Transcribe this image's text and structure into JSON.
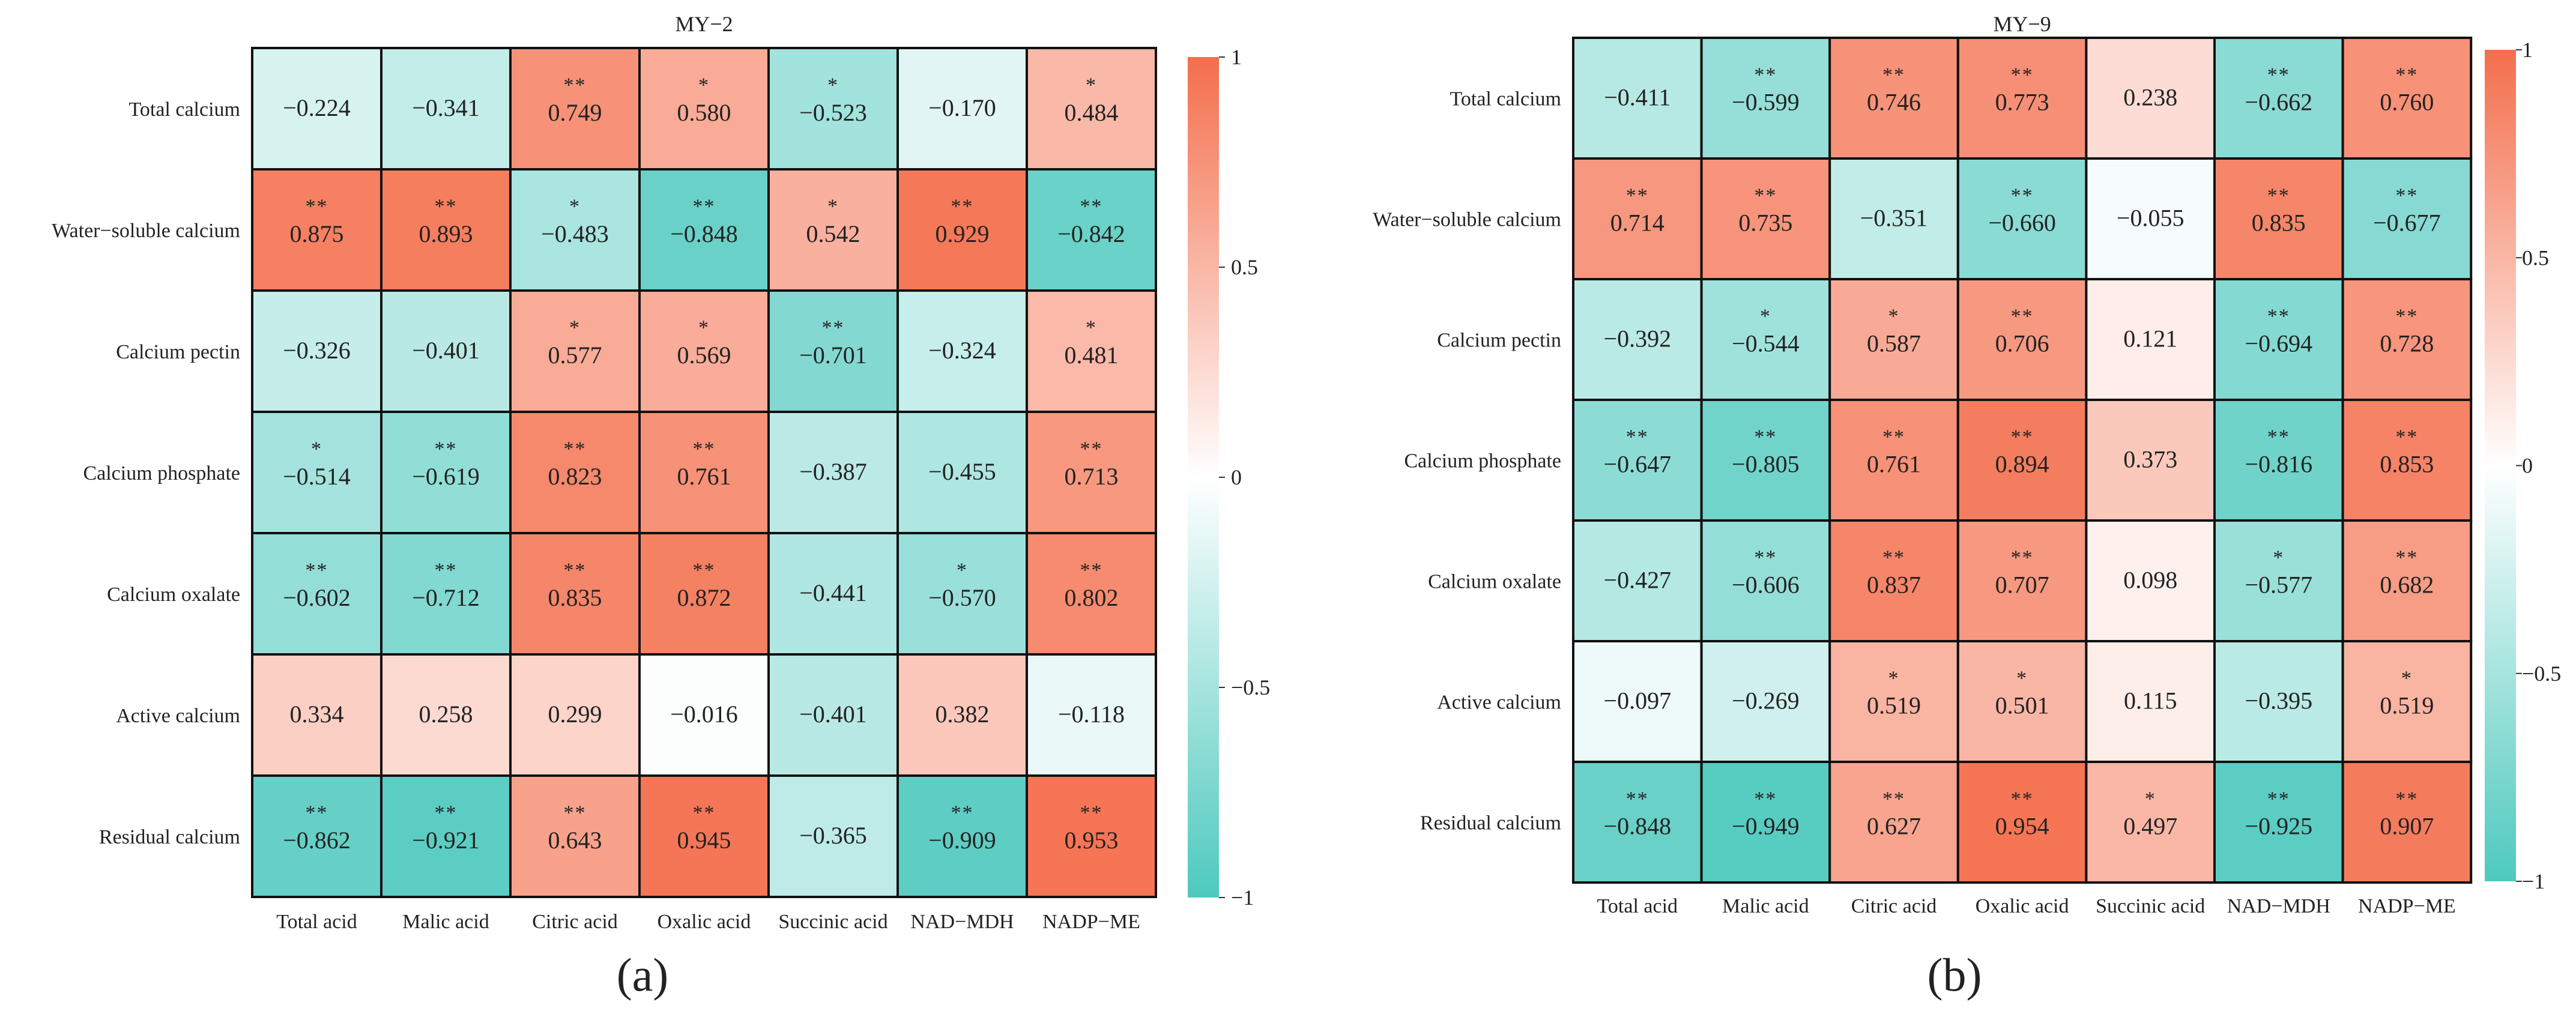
{
  "chart_data": [
    {
      "type": "heatmap",
      "title": "MY−2",
      "panel_label": "(a)",
      "rows": [
        "Total calcium",
        "Water−soluble calcium",
        "Calcium pectin",
        "Calcium phosphate",
        "Calcium oxalate",
        "Active calcium",
        "Residual calcium"
      ],
      "columns": [
        "Total acid",
        "Malic acid",
        "Citric acid",
        "Oxalic acid",
        "Succinic acid",
        "NAD−MDH",
        "NADP−ME"
      ],
      "values": [
        [
          -0.224,
          -0.341,
          0.749,
          0.58,
          -0.523,
          -0.17,
          0.484
        ],
        [
          0.875,
          0.893,
          -0.483,
          -0.848,
          0.542,
          0.929,
          -0.842
        ],
        [
          -0.326,
          -0.401,
          0.577,
          0.569,
          -0.701,
          -0.324,
          0.481
        ],
        [
          -0.514,
          -0.619,
          0.823,
          0.761,
          -0.387,
          -0.455,
          0.713
        ],
        [
          -0.602,
          -0.712,
          0.835,
          0.872,
          -0.441,
          -0.57,
          0.802
        ],
        [
          0.334,
          0.258,
          0.299,
          -0.016,
          -0.401,
          0.382,
          -0.118
        ],
        [
          -0.862,
          -0.921,
          0.643,
          0.945,
          -0.365,
          -0.909,
          0.953
        ]
      ],
      "value_labels": [
        [
          "−0.224",
          "−0.341",
          "0.749",
          "0.580",
          "−0.523",
          "−0.170",
          "0.484"
        ],
        [
          "0.875",
          "0.893",
          "−0.483",
          "−0.848",
          "0.542",
          "0.929",
          "−0.842"
        ],
        [
          "−0.326",
          "−0.401",
          "0.577",
          "0.569",
          "−0.701",
          "−0.324",
          "0.481"
        ],
        [
          "−0.514",
          "−0.619",
          "0.823",
          "0.761",
          "−0.387",
          "−0.455",
          "0.713"
        ],
        [
          "−0.602",
          "−0.712",
          "0.835",
          "0.872",
          "−0.441",
          "−0.570",
          "0.802"
        ],
        [
          "0.334",
          "0.258",
          "0.299",
          "−0.016",
          "−0.401",
          "0.382",
          "−0.118"
        ],
        [
          "−0.862",
          "−0.921",
          "0.643",
          "0.945",
          "−0.365",
          "−0.909",
          "0.953"
        ]
      ],
      "significance": [
        [
          "",
          "",
          "**",
          "*",
          "*",
          "",
          "*"
        ],
        [
          "**",
          "**",
          "*",
          "**",
          "*",
          "**",
          "**"
        ],
        [
          "",
          "",
          "*",
          "*",
          "**",
          "",
          "*"
        ],
        [
          "*",
          "**",
          "**",
          "**",
          "",
          "",
          "**"
        ],
        [
          "**",
          "**",
          "**",
          "**",
          "",
          "*",
          "**"
        ],
        [
          "",
          "",
          "",
          "",
          "",
          "",
          ""
        ],
        [
          "**",
          "**",
          "**",
          "**",
          "",
          "**",
          "**"
        ]
      ],
      "colorbar": {
        "range": [
          -1,
          1
        ],
        "ticks": [
          "1",
          "0.5",
          "0",
          "−0.5",
          "−1"
        ]
      }
    },
    {
      "type": "heatmap",
      "title": "MY−9",
      "panel_label": "(b)",
      "rows": [
        "Total calcium",
        "Water−soluble calcium",
        "Calcium pectin",
        "Calcium phosphate",
        "Calcium oxalate",
        "Active calcium",
        "Residual calcium"
      ],
      "columns": [
        "Total acid",
        "Malic acid",
        "Citric acid",
        "Oxalic acid",
        "Succinic acid",
        "NAD−MDH",
        "NADP−ME"
      ],
      "values": [
        [
          -0.411,
          -0.599,
          0.746,
          0.773,
          0.238,
          -0.662,
          0.76
        ],
        [
          0.714,
          0.735,
          -0.351,
          -0.66,
          -0.055,
          0.835,
          -0.677
        ],
        [
          -0.392,
          -0.544,
          0.587,
          0.706,
          0.121,
          -0.694,
          0.728
        ],
        [
          -0.647,
          -0.805,
          0.761,
          0.894,
          0.373,
          -0.816,
          0.853
        ],
        [
          -0.427,
          -0.606,
          0.837,
          0.707,
          0.098,
          -0.577,
          0.682
        ],
        [
          -0.097,
          -0.269,
          0.519,
          0.501,
          0.115,
          -0.395,
          0.519
        ],
        [
          -0.848,
          -0.949,
          0.627,
          0.954,
          0.497,
          -0.925,
          0.907
        ]
      ],
      "value_labels": [
        [
          "−0.411",
          "−0.599",
          "0.746",
          "0.773",
          "0.238",
          "−0.662",
          "0.760"
        ],
        [
          "0.714",
          "0.735",
          "−0.351",
          "−0.660",
          "−0.055",
          "0.835",
          "−0.677"
        ],
        [
          "−0.392",
          "−0.544",
          "0.587",
          "0.706",
          "0.121",
          "−0.694",
          "0.728"
        ],
        [
          "−0.647",
          "−0.805",
          "0.761",
          "0.894",
          "0.373",
          "−0.816",
          "0.853"
        ],
        [
          "−0.427",
          "−0.606",
          "0.837",
          "0.707",
          "0.098",
          "−0.577",
          "0.682"
        ],
        [
          "−0.097",
          "−0.269",
          "0.519",
          "0.501",
          "0.115",
          "−0.395",
          "0.519"
        ],
        [
          "−0.848",
          "−0.949",
          "0.627",
          "0.954",
          "0.497",
          "−0.925",
          "0.907"
        ]
      ],
      "significance": [
        [
          "",
          "**",
          "**",
          "**",
          "",
          "**",
          "**"
        ],
        [
          "**",
          "**",
          "",
          "**",
          "",
          "**",
          "**"
        ],
        [
          "",
          "*",
          "*",
          "**",
          "",
          "**",
          "**"
        ],
        [
          "**",
          "**",
          "**",
          "**",
          "",
          "**",
          "**"
        ],
        [
          "",
          "**",
          "**",
          "**",
          "",
          "*",
          "**"
        ],
        [
          "",
          "",
          "*",
          "*",
          "",
          "",
          "*"
        ],
        [
          "**",
          "**",
          "**",
          "**",
          "*",
          "**",
          "**"
        ]
      ],
      "colorbar": {
        "range": [
          -1,
          1
        ],
        "ticks": [
          "1",
          "0.5",
          "0",
          "−0.5",
          "−1"
        ]
      }
    }
  ],
  "colors": {
    "positive": "#F46E4C",
    "neutral": "#FFFFFF",
    "negative": "#4EC9BE",
    "grid": "#111111"
  }
}
